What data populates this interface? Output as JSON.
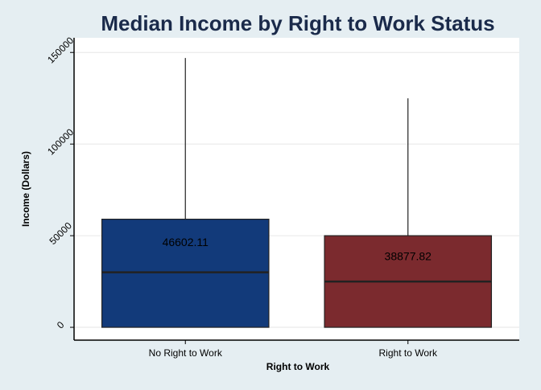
{
  "chart_data": {
    "type": "box",
    "title": "Median Income by Right to Work Status",
    "xlabel": "Right to Work",
    "ylabel": "Income (Dollars)",
    "categories": [
      "No Right to Work",
      "Right to Work"
    ],
    "ylim": [
      -7000,
      158000
    ],
    "yticks": [
      0,
      50000,
      100000,
      150000
    ],
    "ytick_labels": [
      "0",
      "50000",
      "100000",
      "150000"
    ],
    "grid": true,
    "boxes": [
      {
        "category": "No Right to Work",
        "min": 0,
        "q1": 0,
        "median": 30000,
        "q3": 59000,
        "max": 147000,
        "label": "46602.11",
        "label_value": 46602.11,
        "color": "#123a7a"
      },
      {
        "category": "Right to Work",
        "min": 0,
        "q1": 0,
        "median": 25000,
        "q3": 50000,
        "max": 125000,
        "label": "38877.82",
        "label_value": 38877.82,
        "color": "#7b2a2e"
      }
    ],
    "colors": {
      "background": "#e5eef2",
      "plot_background": "#ffffff",
      "grid": "#e6e6e6",
      "title": "#1a2a4a"
    }
  }
}
